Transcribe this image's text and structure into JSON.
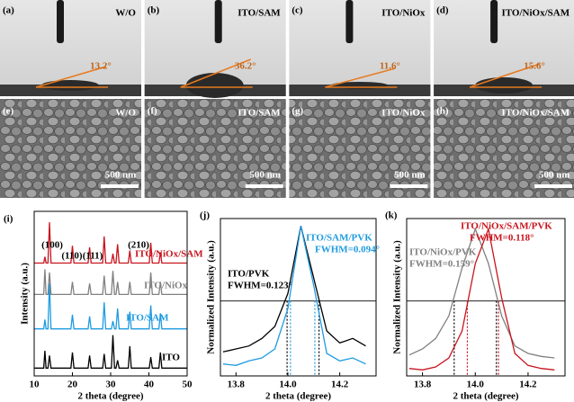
{
  "photos": [
    {
      "tag": "(a)",
      "label": "W/O",
      "angle": "13.2°"
    },
    {
      "tag": "(b)",
      "label": "ITO/SAM",
      "angle": "36.2°"
    },
    {
      "tag": "(c)",
      "label": "ITO/NiOx",
      "angle": "11.6°"
    },
    {
      "tag": "(d)",
      "label": "ITO/NiOx/SAM",
      "angle": "15.6°"
    }
  ],
  "sem": [
    {
      "tag": "(e)",
      "label": "W/O",
      "scale": "500 nm"
    },
    {
      "tag": "(f)",
      "label": "ITO/SAM",
      "scale": "500 nm"
    },
    {
      "tag": "(g)",
      "label": "ITO/NiOx",
      "scale": "500 nm"
    },
    {
      "tag": "(h)",
      "label": "ITO/NiOx/SAM",
      "scale": "500 nm"
    }
  ],
  "chart_data": [
    {
      "type": "xrd",
      "tag": "(i)",
      "xlabel": "2 theta (degree)",
      "ylabel": "Intensity (a.u.)",
      "xlim": [
        10,
        50
      ],
      "xticks": [
        10,
        20,
        30,
        40,
        50
      ],
      "ylim": [
        0,
        10.5
      ],
      "annotations": [
        "(100)",
        "(110)",
        "(111)",
        "(210)"
      ],
      "x": [
        10,
        12.5,
        12.8,
        13.1,
        13.6,
        14,
        14.4,
        19.6,
        20,
        20.4,
        24.1,
        24.5,
        24.9,
        27.9,
        28.3,
        28.7,
        30.2,
        30.6,
        31,
        31.4,
        31.8,
        32.2,
        34.6,
        35,
        35.4,
        40.1,
        40.5,
        40.9,
        42.6,
        43,
        43.4,
        50
      ],
      "series": [
        {
          "name": "ITO/NiOx/SAM",
          "color": "#c8141e",
          "values": [
            7.2,
            7.2,
            7.6,
            7.2,
            7.2,
            9.8,
            7.2,
            7.2,
            8.3,
            7.2,
            7.2,
            8.2,
            7.2,
            7.2,
            8.9,
            7.2,
            7.2,
            7.8,
            7.2,
            7.2,
            8.4,
            7.2,
            7.2,
            8.0,
            7.2,
            7.2,
            8.5,
            7.2,
            7.2,
            7.9,
            7.2,
            7.2
          ]
        },
        {
          "name": "ITO/NiOx",
          "color": "#808080",
          "values": [
            5.2,
            5.2,
            6.8,
            5.2,
            5.2,
            6.6,
            5.2,
            5.2,
            6.0,
            5.2,
            5.2,
            5.9,
            5.2,
            5.2,
            6.4,
            5.2,
            5.2,
            6.7,
            5.2,
            5.2,
            6.0,
            5.2,
            5.2,
            6.0,
            5.2,
            5.2,
            6.6,
            5.2,
            5.2,
            6.0,
            5.2,
            5.2
          ]
        },
        {
          "name": "ITO/SAM",
          "color": "#1e9be1",
          "values": [
            3,
            3,
            3.6,
            3,
            3,
            5.9,
            3,
            3,
            3.9,
            3,
            3,
            3.8,
            3,
            3,
            4.7,
            3,
            3,
            3.5,
            3,
            3,
            4.3,
            3,
            3,
            4.1,
            3,
            3,
            4.5,
            3,
            3,
            4.0,
            3,
            3
          ]
        },
        {
          "name": "ITO",
          "color": "#000000",
          "values": [
            0.5,
            0.5,
            1.6,
            0.5,
            0.5,
            1.3,
            0.5,
            0.5,
            1.5,
            0.5,
            0.5,
            1.3,
            0.5,
            0.5,
            1.4,
            0.5,
            0.5,
            2.6,
            0.5,
            0.5,
            1.0,
            0.5,
            0.5,
            1.9,
            0.5,
            0.5,
            1.2,
            0.5,
            0.5,
            1.5,
            0.5,
            0.5
          ]
        }
      ]
    },
    {
      "type": "peak",
      "tag": "(j)",
      "xlabel": "2 theta (degree)",
      "ylabel": "Normalized Intensity (a.u.)",
      "xlim": [
        13.74,
        14.34
      ],
      "xticks": [
        13.8,
        {
          "value": 14,
          "label": "14.0"
        },
        14.2
      ],
      "ylim": [
        0,
        1.05
      ],
      "hline": 0.5,
      "x": [
        13.75,
        13.8,
        13.85,
        13.9,
        13.95,
        14,
        14.05,
        14.1,
        14.15,
        14.2,
        14.25,
        14.3
      ],
      "series": [
        {
          "name": "ITO/PVK",
          "color": "#000000",
          "fwhm_label": "FWHM=0.123°",
          "fwhm_x": [
            13.997,
            14.12
          ],
          "values": [
            0.16,
            0.18,
            0.2,
            0.25,
            0.33,
            0.55,
            1.0,
            0.65,
            0.3,
            0.22,
            0.25,
            0.2
          ]
        },
        {
          "name": "ITO/SAM/PVK",
          "color": "#1e9be1",
          "fwhm_label": "FWHM=0.094°",
          "fwhm_x": [
            14.01,
            14.104
          ],
          "values": [
            0.08,
            0.07,
            0.1,
            0.12,
            0.18,
            0.45,
            1.0,
            0.6,
            0.15,
            0.1,
            0.12,
            0.08
          ]
        }
      ]
    },
    {
      "type": "peak",
      "tag": "(k)",
      "xlabel": "2 theta (degree)",
      "ylabel": "Normalized Intensity (a.u.)",
      "xlim": [
        13.74,
        14.34
      ],
      "xticks": [
        13.8,
        {
          "value": 14,
          "label": "14.0"
        },
        14.2
      ],
      "ylim": [
        0,
        1.05
      ],
      "hline": 0.5,
      "x": [
        13.75,
        13.8,
        13.85,
        13.9,
        13.95,
        14,
        14.05,
        14.1,
        14.15,
        14.2,
        14.25,
        14.3
      ],
      "series": [
        {
          "name": "ITO/NiOx/PVK",
          "color": "#808080",
          "fwhm_label": "FWHM=0.159°",
          "fwhm_x": [
            13.92,
            14.08
          ],
          "values": [
            0.14,
            0.18,
            0.25,
            0.4,
            0.72,
            0.98,
            0.75,
            0.4,
            0.2,
            0.15,
            0.13,
            0.12
          ]
        },
        {
          "name": "ITO/NiOx/SAM/PVK",
          "color": "#c8141e",
          "fwhm_label": "FWHM=0.118°",
          "fwhm_x": [
            13.97,
            14.088
          ],
          "values": [
            0.05,
            0.04,
            0.06,
            0.12,
            0.3,
            0.75,
            0.98,
            0.52,
            0.15,
            0.07,
            0.05,
            0.04
          ]
        }
      ]
    }
  ]
}
